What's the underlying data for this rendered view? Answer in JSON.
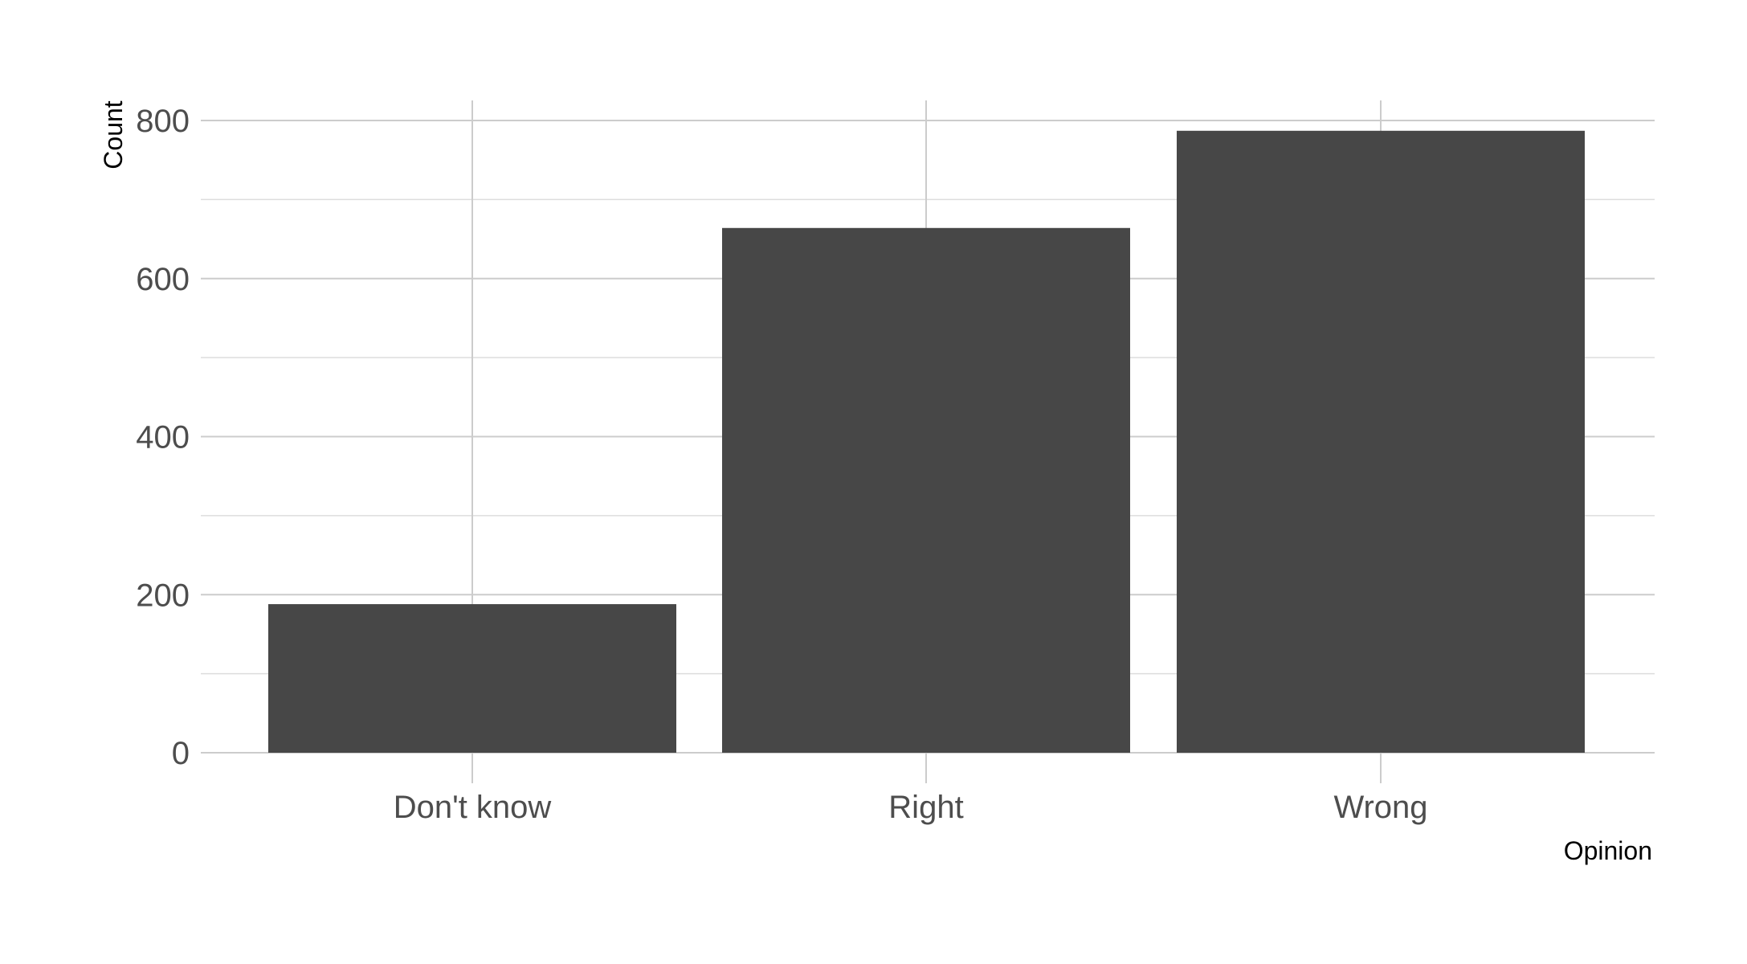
{
  "chart_data": {
    "type": "bar",
    "categories": [
      "Don't know",
      "Right",
      "Wrong"
    ],
    "values": [
      188,
      664,
      787
    ],
    "title": "",
    "xlabel": "Opinion",
    "ylabel": "Count",
    "ylim": [
      0,
      800
    ],
    "yticks": [
      0,
      200,
      400,
      600,
      800
    ],
    "ytick_labels": [
      "0",
      "200",
      "400",
      "600",
      "800"
    ],
    "grid": true,
    "legend": "none",
    "colors": {
      "bar": "#474747",
      "grid": "#cccccc",
      "tick_text": "#4d4d4d",
      "axis_title": "#000000",
      "background": "#ffffff"
    }
  }
}
